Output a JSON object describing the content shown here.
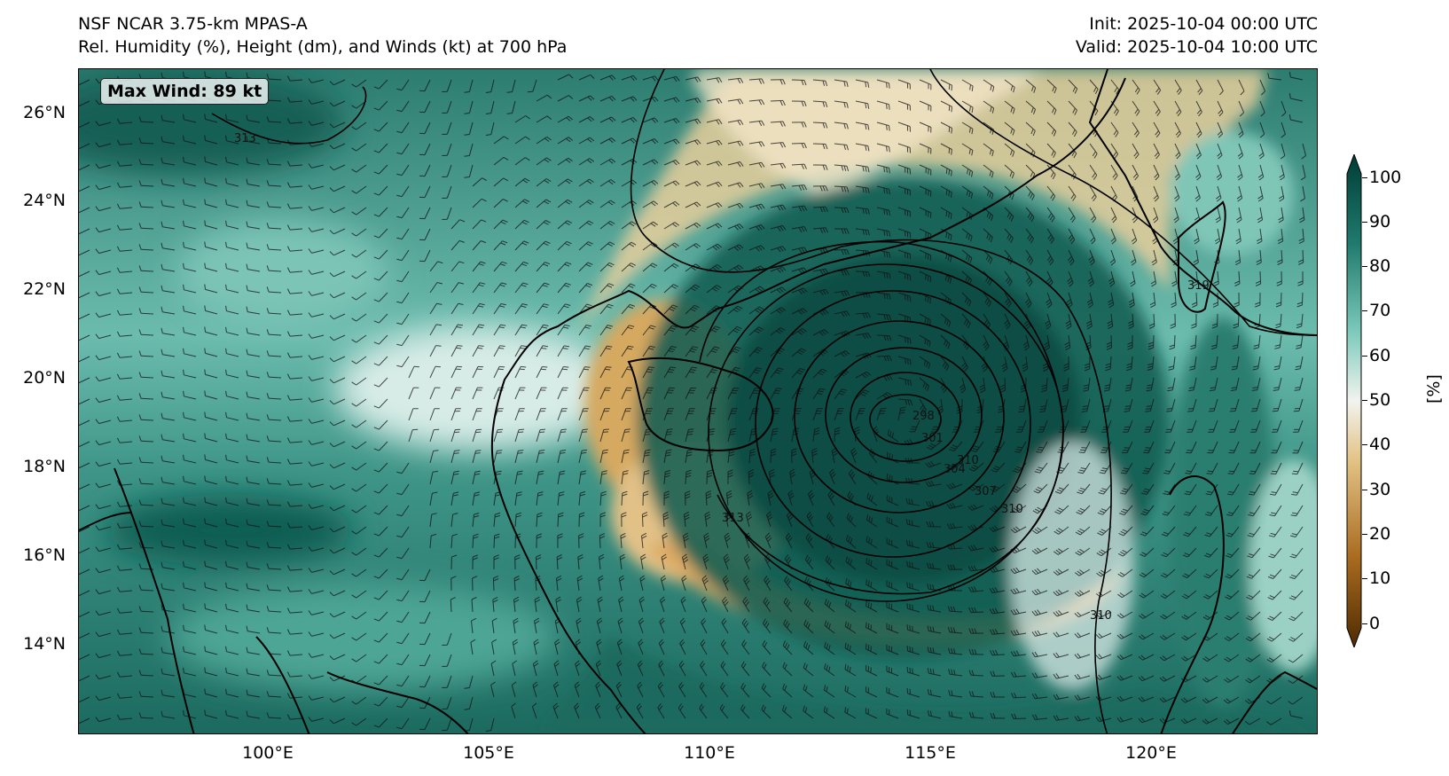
{
  "header": {
    "model": "NSF NCAR 3.75-km MPAS-A",
    "field": "Rel. Humidity (%), Height (dm), and Winds (kt) at 700 hPa",
    "init": "Init: 2025-10-04 00:00 UTC",
    "valid": "Valid: 2025-10-04 10:00 UTC"
  },
  "map": {
    "max_wind_label": "Max Wind: 89 kt",
    "lat_labels": [
      "26°N",
      "24°N",
      "22°N",
      "20°N",
      "18°N",
      "16°N",
      "14°N"
    ],
    "lon_labels": [
      "100°E",
      "105°E",
      "110°E",
      "115°E",
      "120°E"
    ],
    "contour_labels": [
      "313",
      "310",
      "310",
      "307",
      "304",
      "301",
      "298",
      "313",
      "310",
      "319"
    ],
    "extent": {
      "lon_min": 95.7,
      "lon_max": 123.8,
      "lat_min": 12.1,
      "lat_max": 27.0
    }
  },
  "colorbar": {
    "ticks": [
      "100",
      "90",
      "80",
      "70",
      "60",
      "50",
      "40",
      "30",
      "20",
      "10",
      "0"
    ],
    "label": "[%]",
    "colors": {
      "top": "#00403a",
      "mid_high": "#5ab4a5",
      "mid": "#f3f2ee",
      "mid_low": "#d9b06a",
      "bottom": "#5a3000"
    }
  }
}
